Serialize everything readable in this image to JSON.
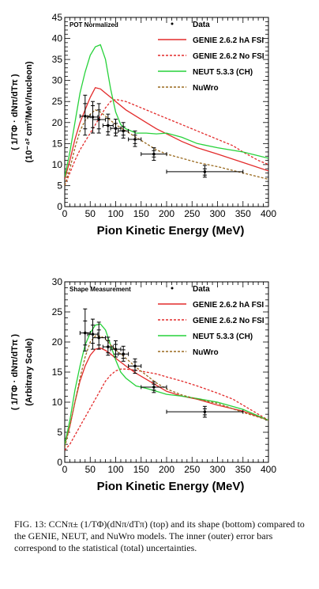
{
  "chart_data": [
    {
      "type": "line",
      "panel_label": "POT Normalized",
      "xlabel": "Pion Kinetic Energy (MeV)",
      "ylabel_frac": "( 1/TΦ · dNπ/dTπ )",
      "ylabel_unit": "(10⁻⁴² cm²/MeV/nucleon)",
      "xlim": [
        0,
        400
      ],
      "ylim": [
        0,
        45
      ],
      "xticks": [
        0,
        50,
        100,
        150,
        200,
        250,
        300,
        350,
        400
      ],
      "yticks": [
        0,
        5,
        10,
        15,
        20,
        25,
        30,
        35,
        40,
        45
      ],
      "legend_position": "top-right",
      "series": [
        {
          "name": "Data",
          "kind": "points",
          "color": "#000000",
          "points": [
            {
              "x": 40,
              "y": 21.5,
              "xerr": [
                30,
                50
              ],
              "yerr_in": [
                18.5,
                24.5
              ],
              "yerr_out": [
                17,
                26.5
              ]
            },
            {
              "x": 55,
              "y": 21.3,
              "xerr": [
                45,
                65
              ],
              "yerr_in": [
                18.8,
                24
              ],
              "yerr_out": [
                17.5,
                25
              ]
            },
            {
              "x": 67,
              "y": 20.7,
              "xerr": [
                55,
                80
              ],
              "yerr_in": [
                18.5,
                23
              ],
              "yerr_out": [
                17.5,
                24.5
              ]
            },
            {
              "x": 85,
              "y": 19.3,
              "xerr": [
                75,
                95
              ],
              "yerr_in": [
                17.8,
                21
              ],
              "yerr_out": [
                17,
                22
              ]
            },
            {
              "x": 100,
              "y": 18.6,
              "xerr": [
                90,
                110
              ],
              "yerr_in": [
                17.5,
                19.8
              ],
              "yerr_out": [
                16.8,
                20.8
              ]
            },
            {
              "x": 115,
              "y": 18.0,
              "xerr": [
                105,
                125
              ],
              "yerr_in": [
                17,
                19
              ],
              "yerr_out": [
                16.3,
                20
              ]
            },
            {
              "x": 138,
              "y": 16.0,
              "xerr": [
                125,
                150
              ],
              "yerr_in": [
                15,
                17
              ],
              "yerr_out": [
                14.3,
                18
              ]
            },
            {
              "x": 175,
              "y": 12.5,
              "xerr": [
                150,
                200
              ],
              "yerr_in": [
                11.8,
                13.3
              ],
              "yerr_out": [
                11,
                14
              ]
            },
            {
              "x": 275,
              "y": 8.3,
              "xerr": [
                200,
                350
              ],
              "yerr_in": [
                7.5,
                9
              ],
              "yerr_out": [
                7,
                9.8
              ]
            }
          ]
        },
        {
          "name": "GENIE 2.6.2 hA FSI",
          "color": "#e32b2b",
          "dash": "solid",
          "x": [
            0,
            10,
            20,
            30,
            40,
            50,
            60,
            70,
            80,
            90,
            100,
            120,
            140,
            160,
            180,
            200,
            230,
            260,
            300,
            350,
            400
          ],
          "y": [
            6.5,
            11,
            16,
            20,
            23,
            26,
            28.3,
            28,
            27,
            26,
            25,
            23,
            21.5,
            20,
            18.5,
            17.3,
            15.5,
            14,
            12.5,
            10.5,
            8.5
          ]
        },
        {
          "name": "GENIE 2.6.2 No FSI",
          "color": "#e32b2b",
          "dash": "3,2",
          "x": [
            0,
            10,
            20,
            30,
            40,
            50,
            60,
            70,
            80,
            90,
            100,
            120,
            140,
            160,
            180,
            200,
            230,
            260,
            300,
            330,
            350,
            380,
            400
          ],
          "y": [
            5,
            8,
            11,
            13.5,
            15.5,
            17.5,
            19.5,
            21.5,
            23.5,
            25,
            25.5,
            25,
            24,
            23,
            22,
            21,
            19.5,
            18,
            16,
            14.5,
            13,
            11,
            10
          ]
        },
        {
          "name": "NEUT 5.3.3 (CH)",
          "color": "#27d23a",
          "dash": "solid",
          "x": [
            0,
            10,
            20,
            30,
            40,
            50,
            60,
            70,
            80,
            90,
            100,
            110,
            120,
            130,
            140,
            160,
            180,
            200,
            230,
            260,
            300,
            350,
            400
          ],
          "y": [
            7,
            13,
            20,
            27,
            32,
            36,
            38,
            38.5,
            35,
            28,
            22.5,
            19.5,
            18.5,
            18,
            17.5,
            17.5,
            17.3,
            17.5,
            16.5,
            15,
            14,
            13,
            11.5
          ]
        },
        {
          "name": "NuWro",
          "color": "#9a6a1f",
          "dash": "3,2",
          "x": [
            0,
            10,
            20,
            30,
            40,
            50,
            60,
            70,
            80,
            90,
            100,
            120,
            140,
            160,
            180,
            200,
            230,
            260,
            300,
            350,
            400
          ],
          "y": [
            5,
            9,
            14,
            18,
            20.5,
            22,
            23,
            22.5,
            21.5,
            20.5,
            19.5,
            18,
            16.5,
            15,
            13.5,
            12.5,
            11.5,
            10.5,
            9.5,
            8,
            6.5
          ]
        }
      ]
    },
    {
      "type": "line",
      "panel_label": "Shape Measurement",
      "xlabel": "Pion Kinetic Energy (MeV)",
      "ylabel_frac": "( 1/TΦ · dNπ/dTπ )",
      "ylabel_unit": "(Arbitrary Scale)",
      "xlim": [
        0,
        400
      ],
      "ylim": [
        0,
        30
      ],
      "xticks": [
        0,
        50,
        100,
        150,
        200,
        250,
        300,
        350,
        400
      ],
      "yticks": [
        0,
        5,
        10,
        15,
        20,
        25,
        30
      ],
      "legend_position": "top-right",
      "series": [
        {
          "name": "Data",
          "kind": "points",
          "color": "#000000",
          "points": [
            {
              "x": 40,
              "y": 21.5,
              "xerr": [
                30,
                50
              ],
              "yerr_in": [
                19.5,
                23.5
              ],
              "yerr_out": [
                18.5,
                25.5
              ]
            },
            {
              "x": 55,
              "y": 21.3,
              "xerr": [
                45,
                65
              ],
              "yerr_in": [
                19.8,
                22.8
              ],
              "yerr_out": [
                18.8,
                23.8
              ]
            },
            {
              "x": 67,
              "y": 20.7,
              "xerr": [
                55,
                80
              ],
              "yerr_in": [
                19.5,
                22
              ],
              "yerr_out": [
                18.8,
                23.3
              ]
            },
            {
              "x": 85,
              "y": 19.2,
              "xerr": [
                75,
                95
              ],
              "yerr_in": [
                18.2,
                20.2
              ],
              "yerr_out": [
                17.8,
                20.8
              ]
            },
            {
              "x": 100,
              "y": 18.8,
              "xerr": [
                90,
                110
              ],
              "yerr_in": [
                18,
                19.6
              ],
              "yerr_out": [
                17.5,
                20.2
              ]
            },
            {
              "x": 115,
              "y": 18.0,
              "xerr": [
                105,
                125
              ],
              "yerr_in": [
                17.3,
                18.7
              ],
              "yerr_out": [
                16.8,
                19.3
              ]
            },
            {
              "x": 138,
              "y": 16.0,
              "xerr": [
                125,
                150
              ],
              "yerr_in": [
                15.3,
                16.7
              ],
              "yerr_out": [
                14.8,
                17.2
              ]
            },
            {
              "x": 175,
              "y": 12.5,
              "xerr": [
                150,
                200
              ],
              "yerr_in": [
                12,
                13
              ],
              "yerr_out": [
                11.6,
                13.4
              ]
            },
            {
              "x": 275,
              "y": 8.4,
              "xerr": [
                200,
                350
              ],
              "yerr_in": [
                7.9,
                8.9
              ],
              "yerr_out": [
                7.5,
                9.3
              ]
            }
          ]
        },
        {
          "name": "GENIE 2.6.2 hA FSI",
          "color": "#e32b2b",
          "dash": "solid",
          "x": [
            0,
            10,
            20,
            30,
            40,
            50,
            60,
            70,
            80,
            90,
            100,
            120,
            140,
            160,
            180,
            200,
            230,
            260,
            300,
            350,
            400
          ],
          "y": [
            3,
            6,
            10,
            13.5,
            16,
            17.8,
            18.8,
            19,
            18.6,
            18,
            17.3,
            16,
            14.8,
            13.8,
            12.8,
            11.8,
            11,
            10.5,
            9.5,
            8.5,
            7
          ]
        },
        {
          "name": "GENIE 2.6.2 No FSI",
          "color": "#e32b2b",
          "dash": "3,2",
          "x": [
            0,
            10,
            20,
            30,
            40,
            50,
            60,
            70,
            80,
            90,
            100,
            110,
            120,
            140,
            160,
            180,
            200,
            230,
            260,
            300,
            330,
            350,
            380,
            400
          ],
          "y": [
            2,
            3,
            4.5,
            6,
            7.5,
            9,
            10.5,
            12,
            13.5,
            14.5,
            15.2,
            15.5,
            15.5,
            15.3,
            15,
            14.7,
            14.2,
            13.5,
            12.7,
            11.5,
            10.5,
            9.5,
            8,
            7
          ]
        },
        {
          "name": "NEUT 5.3.3 (CH)",
          "color": "#27d23a",
          "dash": "solid",
          "x": [
            0,
            10,
            20,
            30,
            40,
            50,
            60,
            70,
            80,
            90,
            100,
            110,
            120,
            140,
            160,
            180,
            200,
            230,
            260,
            300,
            350,
            400
          ],
          "y": [
            3,
            7,
            12,
            16,
            19.5,
            21.5,
            22.8,
            23,
            22,
            19.5,
            17,
            15,
            14,
            12.7,
            12.3,
            11.8,
            11.3,
            11,
            10.6,
            10,
            8.8,
            7
          ]
        },
        {
          "name": "NuWro",
          "color": "#9a6a1f",
          "dash": "3,2",
          "x": [
            0,
            10,
            20,
            30,
            40,
            50,
            60,
            70,
            80,
            90,
            100,
            120,
            140,
            160,
            180,
            200,
            230,
            260,
            300,
            350,
            400
          ],
          "y": [
            2.5,
            6,
            10,
            14,
            17.5,
            20,
            21,
            21,
            20.5,
            19.5,
            18.7,
            17.3,
            15.8,
            14.5,
            13.2,
            12.2,
            11.2,
            10.5,
            9.8,
            8.3,
            7
          ]
        }
      ]
    }
  ],
  "caption": {
    "label": "FIG. 13:",
    "text": "CCNπ± (1/TΦ)(dNπ/dTπ) (top) and its shape (bottom) compared to the GENIE, NEUT, and NuWro models. The inner (outer) error bars correspond to the statistical (total) uncertainties."
  }
}
